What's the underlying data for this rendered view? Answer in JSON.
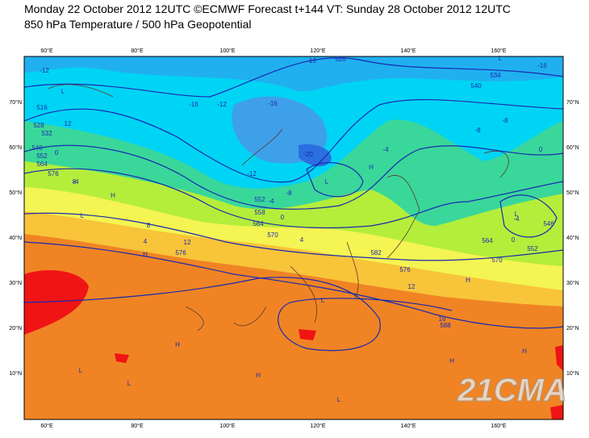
{
  "header": {
    "title": "Monday 22 October 2012 12UTC ©ECMWF Forecast t+144 VT: Sunday 28 October 2012 12UTC",
    "subtitle": "850 hPa Temperature / 500 hPa Geopotential"
  },
  "map": {
    "lon_labels": [
      "60°E",
      "80°E",
      "100°E",
      "120°E",
      "140°E",
      "160°E"
    ],
    "lat_labels": [
      "70°N",
      "60°N",
      "50°N",
      "40°N",
      "30°N",
      "20°N",
      "10°N"
    ],
    "contour_labels": [
      "-12",
      "-16",
      "-12",
      "-16",
      "-16",
      "520",
      "-16",
      "534",
      "540",
      "516",
      "528",
      "532",
      "540",
      "552",
      "564",
      "576",
      "-4",
      "-8",
      "-20",
      "-12",
      "-8",
      "-4",
      "0",
      "552",
      "558",
      "564",
      "570",
      "8",
      "12",
      "576",
      "-4",
      "0",
      "546",
      "552",
      "564",
      "570",
      "576",
      "582",
      "12",
      "16",
      "588",
      "4",
      "8",
      "12",
      "-8",
      "0",
      "4",
      "-4",
      "0"
    ],
    "centers": [
      "L",
      "L",
      "H",
      "H",
      "L",
      "L",
      "H",
      "L",
      "H",
      "H",
      "L",
      "L",
      "H",
      "L",
      "H",
      "H",
      "L"
    ],
    "watermark": "21CMA"
  }
}
